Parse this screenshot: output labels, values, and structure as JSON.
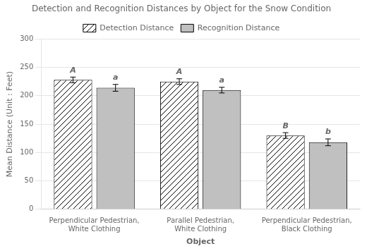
{
  "chart_data": {
    "type": "bar",
    "title": "Detection and Recognition Distances by Object for the Snow Condition",
    "xlabel": "Object",
    "ylabel": "Mean Distance (Unit : Feet)",
    "categories": [
      "Perpendicular Pedestrian, White Clothing",
      "Parallel Pedestrian, White Clothing",
      "Perpendicular Pedestrian, Black Clothing"
    ],
    "series": [
      {
        "name": "Detection Distance",
        "color": "white",
        "values": [
          228,
          225,
          130
        ],
        "errors": [
          5,
          5,
          5
        ],
        "annotations": [
          "A",
          "A",
          "B"
        ]
      },
      {
        "name": "Recognition Distance",
        "color": "#c0c0c0",
        "values": [
          214,
          210,
          118
        ],
        "errors": [
          6,
          5,
          6
        ],
        "annotations": [
          "a",
          "a",
          "b"
        ]
      }
    ],
    "ylim": [
      0,
      300
    ],
    "yticks": [
      0,
      50,
      100,
      150,
      200,
      250,
      300
    ],
    "grid": true,
    "legend": "top"
  }
}
